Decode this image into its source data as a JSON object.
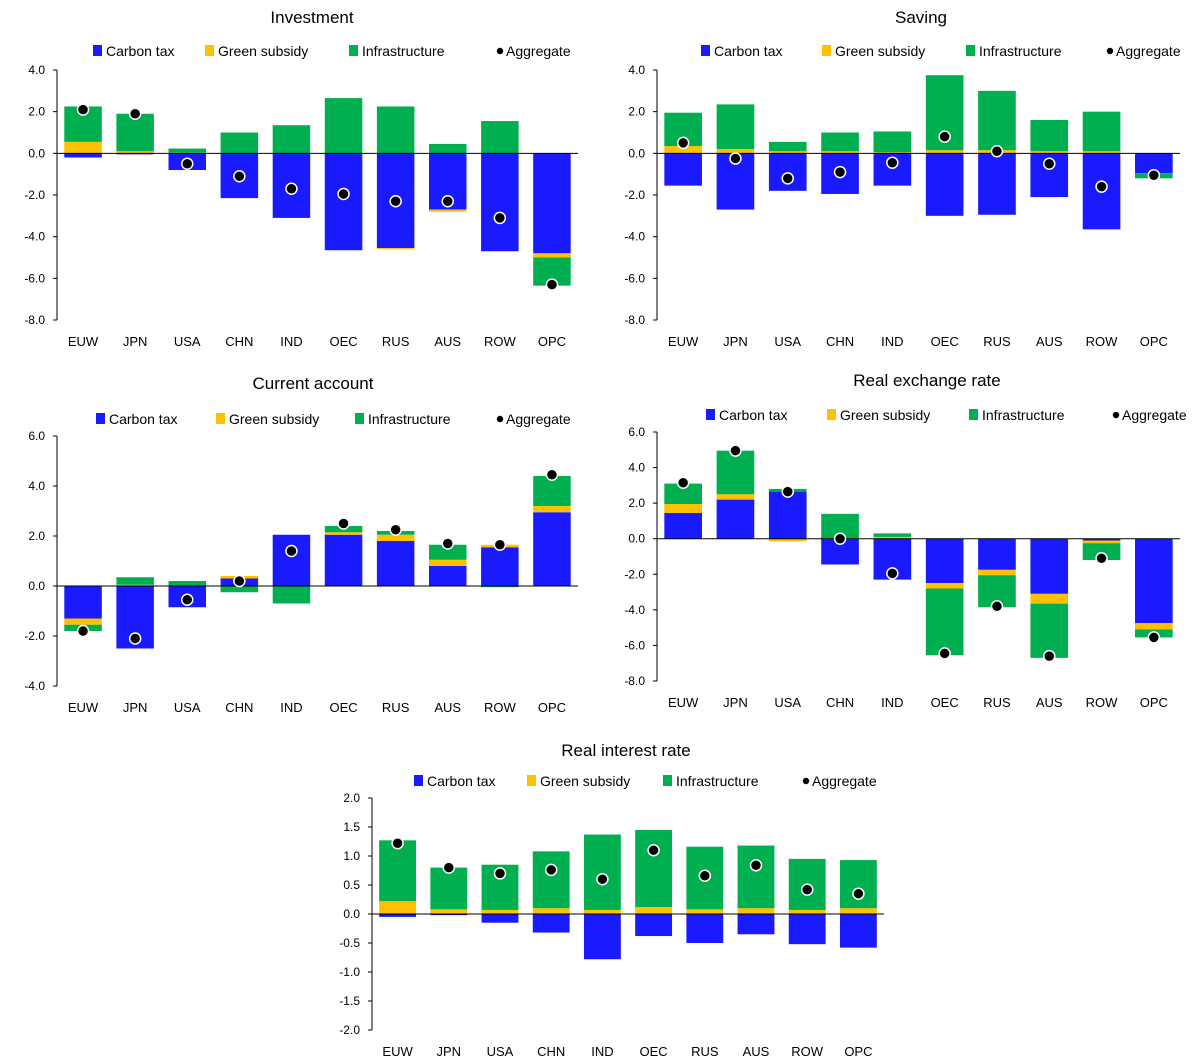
{
  "colors": {
    "carbon_tax": "#1a1aff",
    "green_subsidy": "#ffc000",
    "infrastructure": "#00b050",
    "aggregate": "#000000"
  },
  "chart_data": [
    {
      "type": "bar",
      "stacked": true,
      "title": "Investment",
      "categories": [
        "EUW",
        "JPN",
        "USA",
        "CHN",
        "IND",
        "OEC",
        "RUS",
        "AUS",
        "ROW",
        "OPC"
      ],
      "series": [
        {
          "name": "Carbon tax",
          "values": [
            -0.2,
            -0.05,
            -0.8,
            -2.15,
            -3.1,
            -4.65,
            -4.55,
            -2.7,
            -4.7,
            -4.8
          ]
        },
        {
          "name": "Green subsidy",
          "values": [
            0.55,
            0.1,
            0.03,
            0.0,
            0.0,
            0.0,
            -0.05,
            -0.1,
            0.0,
            -0.2
          ]
        },
        {
          "name": "Infrastructure",
          "values": [
            1.7,
            1.8,
            0.2,
            1.0,
            1.35,
            2.65,
            2.25,
            0.45,
            1.55,
            -1.35
          ]
        },
        {
          "name": "Aggregate",
          "type": "scatter",
          "values": [
            2.1,
            1.9,
            -0.5,
            -1.1,
            -1.7,
            -1.95,
            -2.3,
            -2.3,
            -3.1,
            -6.3
          ]
        }
      ],
      "yticks": [
        "4.0",
        "2.0",
        "0.0",
        "-2.0",
        "-4.0",
        "-6.0",
        "-8.0"
      ],
      "ylim": [
        -8,
        4
      ]
    },
    {
      "type": "bar",
      "stacked": true,
      "title": "Saving",
      "categories": [
        "EUW",
        "JPN",
        "USA",
        "CHN",
        "IND",
        "OEC",
        "RUS",
        "AUS",
        "ROW",
        "OPC"
      ],
      "series": [
        {
          "name": "Carbon tax",
          "values": [
            -1.55,
            -2.7,
            -1.8,
            -1.95,
            -1.55,
            -3.0,
            -2.95,
            -2.1,
            -3.65,
            -0.95
          ]
        },
        {
          "name": "Green subsidy",
          "values": [
            0.35,
            0.2,
            0.1,
            0.1,
            0.05,
            0.15,
            0.15,
            0.1,
            0.1,
            0.0
          ]
        },
        {
          "name": "Infrastructure",
          "values": [
            1.6,
            2.15,
            0.45,
            0.9,
            1.0,
            3.6,
            2.85,
            1.5,
            1.9,
            -0.25
          ]
        },
        {
          "name": "Aggregate",
          "type": "scatter",
          "values": [
            0.5,
            -0.25,
            -1.2,
            -0.9,
            -0.45,
            0.8,
            0.1,
            -0.5,
            -1.6,
            -1.05
          ]
        }
      ],
      "yticks": [
        "4.0",
        "2.0",
        "0.0",
        "-2.0",
        "-4.0",
        "-6.0",
        "-8.0"
      ],
      "ylim": [
        -8,
        4
      ]
    },
    {
      "type": "bar",
      "stacked": true,
      "title": "Current account",
      "categories": [
        "EUW",
        "JPN",
        "USA",
        "CHN",
        "IND",
        "OEC",
        "RUS",
        "AUS",
        "ROW",
        "OPC"
      ],
      "series": [
        {
          "name": "Carbon tax",
          "values": [
            -1.3,
            -2.5,
            -0.85,
            0.3,
            2.05,
            2.05,
            1.8,
            0.8,
            1.55,
            2.95
          ]
        },
        {
          "name": "Green subsidy",
          "values": [
            -0.25,
            0.05,
            0.0,
            0.1,
            0.0,
            0.1,
            0.25,
            0.25,
            0.1,
            0.25
          ]
        },
        {
          "name": "Infrastructure",
          "values": [
            -0.25,
            0.3,
            0.2,
            -0.25,
            -0.7,
            0.25,
            0.15,
            0.6,
            -0.05,
            1.2
          ]
        },
        {
          "name": "Aggregate",
          "type": "scatter",
          "values": [
            -1.8,
            -2.1,
            -0.55,
            0.2,
            1.4,
            2.5,
            2.25,
            1.7,
            1.65,
            4.45
          ]
        }
      ],
      "yticks": [
        "6.0",
        "4.0",
        "2.0",
        "0.0",
        "-2.0",
        "-4.0"
      ],
      "ylim": [
        -4,
        6
      ]
    },
    {
      "type": "bar",
      "stacked": true,
      "title": "Real exchange rate",
      "categories": [
        "EUW",
        "JPN",
        "USA",
        "CHN",
        "IND",
        "OEC",
        "RUS",
        "AUS",
        "ROW",
        "OPC"
      ],
      "series": [
        {
          "name": "Carbon tax",
          "values": [
            1.45,
            2.2,
            2.65,
            -1.45,
            -2.3,
            -2.5,
            -1.75,
            -3.1,
            -0.1,
            -4.75
          ]
        },
        {
          "name": "Green subsidy",
          "values": [
            0.5,
            0.3,
            -0.15,
            0.0,
            0.1,
            -0.3,
            -0.3,
            -0.55,
            -0.15,
            -0.35
          ]
        },
        {
          "name": "Infrastructure",
          "values": [
            1.15,
            2.45,
            0.15,
            1.4,
            0.2,
            -3.75,
            -1.8,
            -3.05,
            -0.95,
            -0.45
          ]
        },
        {
          "name": "Aggregate",
          "type": "scatter",
          "values": [
            3.15,
            4.95,
            2.65,
            0.0,
            -1.95,
            -6.45,
            -3.8,
            -6.6,
            -1.1,
            -5.55
          ]
        }
      ],
      "yticks": [
        "6.0",
        "4.0",
        "2.0",
        "0.0",
        "-2.0",
        "-4.0",
        "-6.0",
        "-8.0"
      ],
      "ylim": [
        -8,
        6
      ]
    },
    {
      "type": "bar",
      "stacked": true,
      "title": "Real interest rate",
      "categories": [
        "EUW",
        "JPN",
        "USA",
        "CHN",
        "IND",
        "OEC",
        "RUS",
        "AUS",
        "ROW",
        "OPC"
      ],
      "series": [
        {
          "name": "Carbon tax",
          "values": [
            -0.05,
            -0.02,
            -0.15,
            -0.32,
            -0.78,
            -0.38,
            -0.5,
            -0.35,
            -0.52,
            -0.58
          ]
        },
        {
          "name": "Green subsidy",
          "values": [
            0.22,
            0.08,
            0.07,
            0.1,
            0.07,
            0.12,
            0.08,
            0.1,
            0.07,
            0.1
          ]
        },
        {
          "name": "Infrastructure",
          "values": [
            1.05,
            0.72,
            0.78,
            0.98,
            1.3,
            1.33,
            1.08,
            1.08,
            0.88,
            0.83
          ]
        },
        {
          "name": "Aggregate",
          "type": "scatter",
          "values": [
            1.22,
            0.8,
            0.7,
            0.76,
            0.6,
            1.1,
            0.66,
            0.84,
            0.42,
            0.35
          ]
        }
      ],
      "yticks": [
        "2.0",
        "1.5",
        "1.0",
        "0.5",
        "0.0",
        "-0.5",
        "-1.0",
        "-1.5",
        "-2.0"
      ],
      "ylim": [
        -2,
        2
      ]
    }
  ]
}
